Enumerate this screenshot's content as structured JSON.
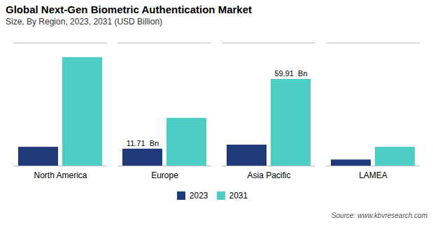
{
  "chart_data": {
    "type": "bar",
    "title": "Global Next-Gen Biometric Authentication Market",
    "subtitle": "Size, By Region, 2023, 2031 (USD Billion)",
    "categories": [
      "North America",
      "Europe",
      "Asia Pacific",
      "LAMEA"
    ],
    "series": [
      {
        "name": "2023",
        "color": "#1e3a7a",
        "values": [
          13.0,
          11.71,
          14.5,
          4.2
        ]
      },
      {
        "name": "2031",
        "color": "#4ecdc4",
        "values": [
          75.0,
          33.0,
          59.91,
          13.0
        ]
      }
    ],
    "annotations": [
      {
        "text": "11.71  Bn",
        "category": "Europe",
        "series": "2023"
      },
      {
        "text": "59.91  Bn",
        "category": "Asia Pacific",
        "series": "2031"
      }
    ],
    "source": "Source: www.kbvresearch.com",
    "ylim": [
      0,
      85
    ],
    "tick_labels": "x",
    "grid": false,
    "legend": "bottom"
  }
}
